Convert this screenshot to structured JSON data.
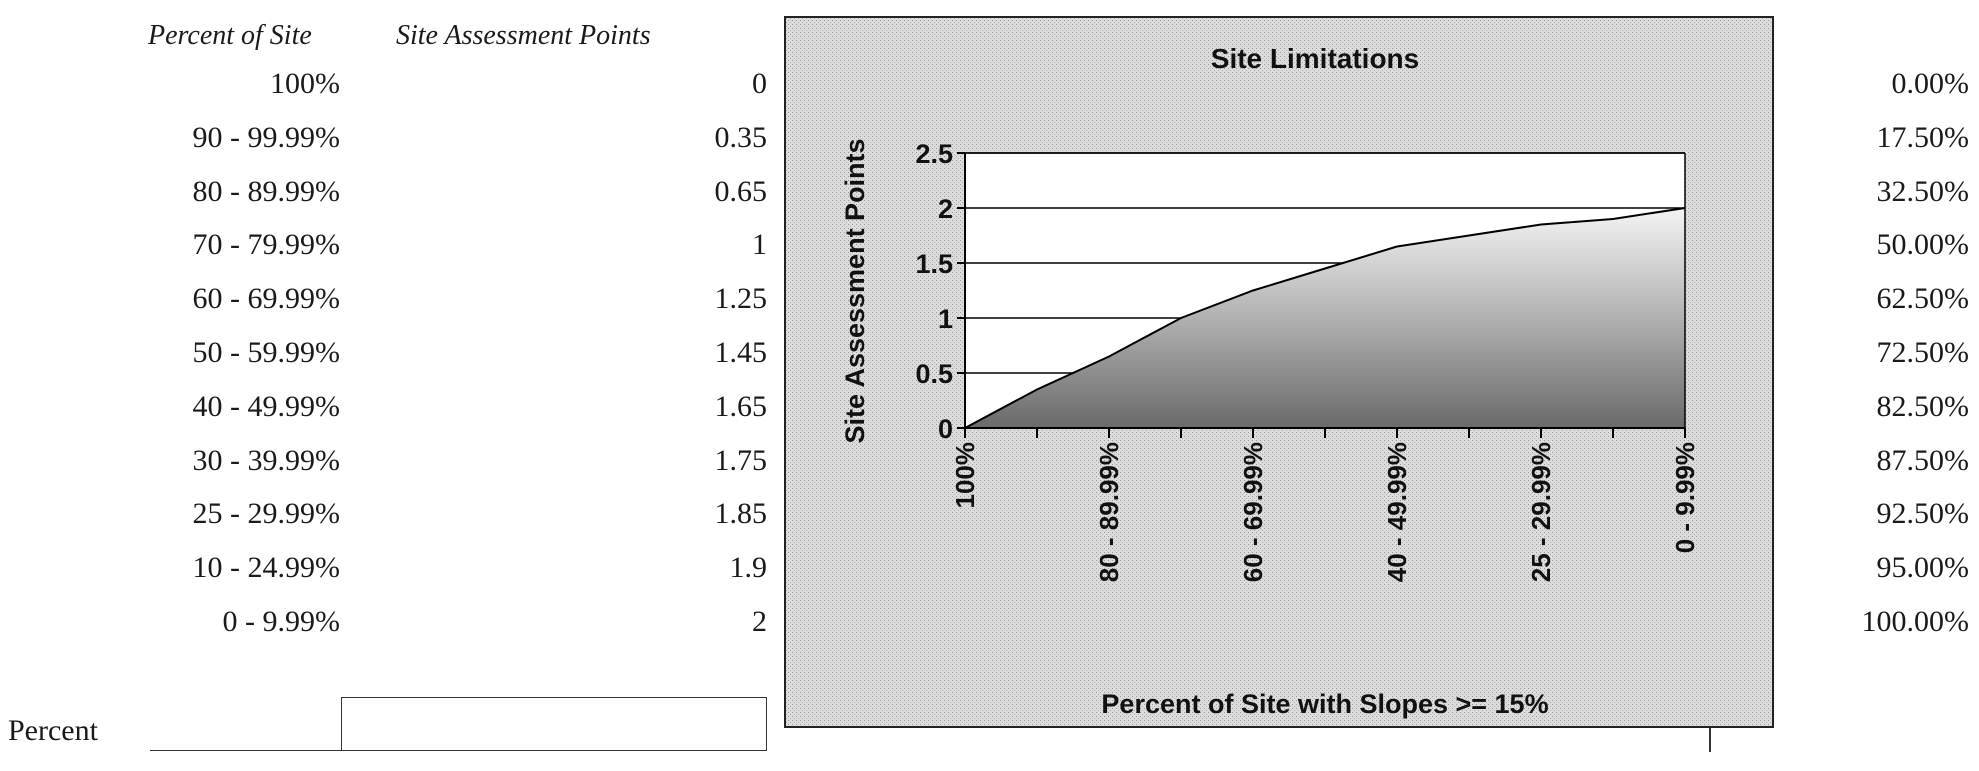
{
  "table": {
    "header_percent": "Percent of Site",
    "header_points": "Site Assessment Points",
    "rows": [
      {
        "range": "100%",
        "points": "0",
        "right": "0.00%"
      },
      {
        "range": "90 - 99.99%",
        "points": "0.35",
        "right": "17.50%"
      },
      {
        "range": "80 - 89.99%",
        "points": "0.65",
        "right": "32.50%"
      },
      {
        "range": "70 - 79.99%",
        "points": "1",
        "right": "50.00%"
      },
      {
        "range": "60 - 69.99%",
        "points": "1.25",
        "right": "62.50%"
      },
      {
        "range": "50 - 59.99%",
        "points": "1.45",
        "right": "72.50%"
      },
      {
        "range": "40 - 49.99%",
        "points": "1.65",
        "right": "82.50%"
      },
      {
        "range": "30 - 39.99%",
        "points": "1.75",
        "right": "87.50%"
      },
      {
        "range": "25 - 29.99%",
        "points": "1.85",
        "right": "92.50%"
      },
      {
        "range": "10 - 24.99%",
        "points": "1.9",
        "right": "95.00%"
      },
      {
        "range": "0 - 9.99%",
        "points": "2",
        "right": "100.00%"
      }
    ]
  },
  "percent_field": {
    "label": "Percent",
    "value": "",
    "placeholder": ""
  },
  "chart_data": {
    "type": "area",
    "title": "Site Limitations",
    "xlabel": "Percent of Site with Slopes >= 15%",
    "ylabel": "Site Assessment Points",
    "categories": [
      "100%",
      "90 - 99.99%",
      "80 - 89.99%",
      "70 - 79.99%",
      "60 - 69.99%",
      "50 - 59.99%",
      "40 - 49.99%",
      "30 - 39.99%",
      "25 - 29.99%",
      "10 - 24.99%",
      "0 - 9.99%"
    ],
    "tick_labels_shown": [
      "100%",
      "80 - 89.99%",
      "60 - 69.99%",
      "40 - 49.99%",
      "25 - 29.99%",
      "0 - 9.99%"
    ],
    "values": [
      0,
      0.35,
      0.65,
      1,
      1.25,
      1.45,
      1.65,
      1.75,
      1.85,
      1.9,
      2
    ],
    "yticks": [
      "0",
      "0.5",
      "1",
      "1.5",
      "2",
      "2.5"
    ],
    "ylim": [
      0,
      2.5
    ],
    "grid": true,
    "legend": "none",
    "colors": {
      "area_dark": "#6e6e6e",
      "area_light": "#f2f2f2",
      "line": "#000000",
      "frame_bg": "#d9d9d9"
    }
  }
}
